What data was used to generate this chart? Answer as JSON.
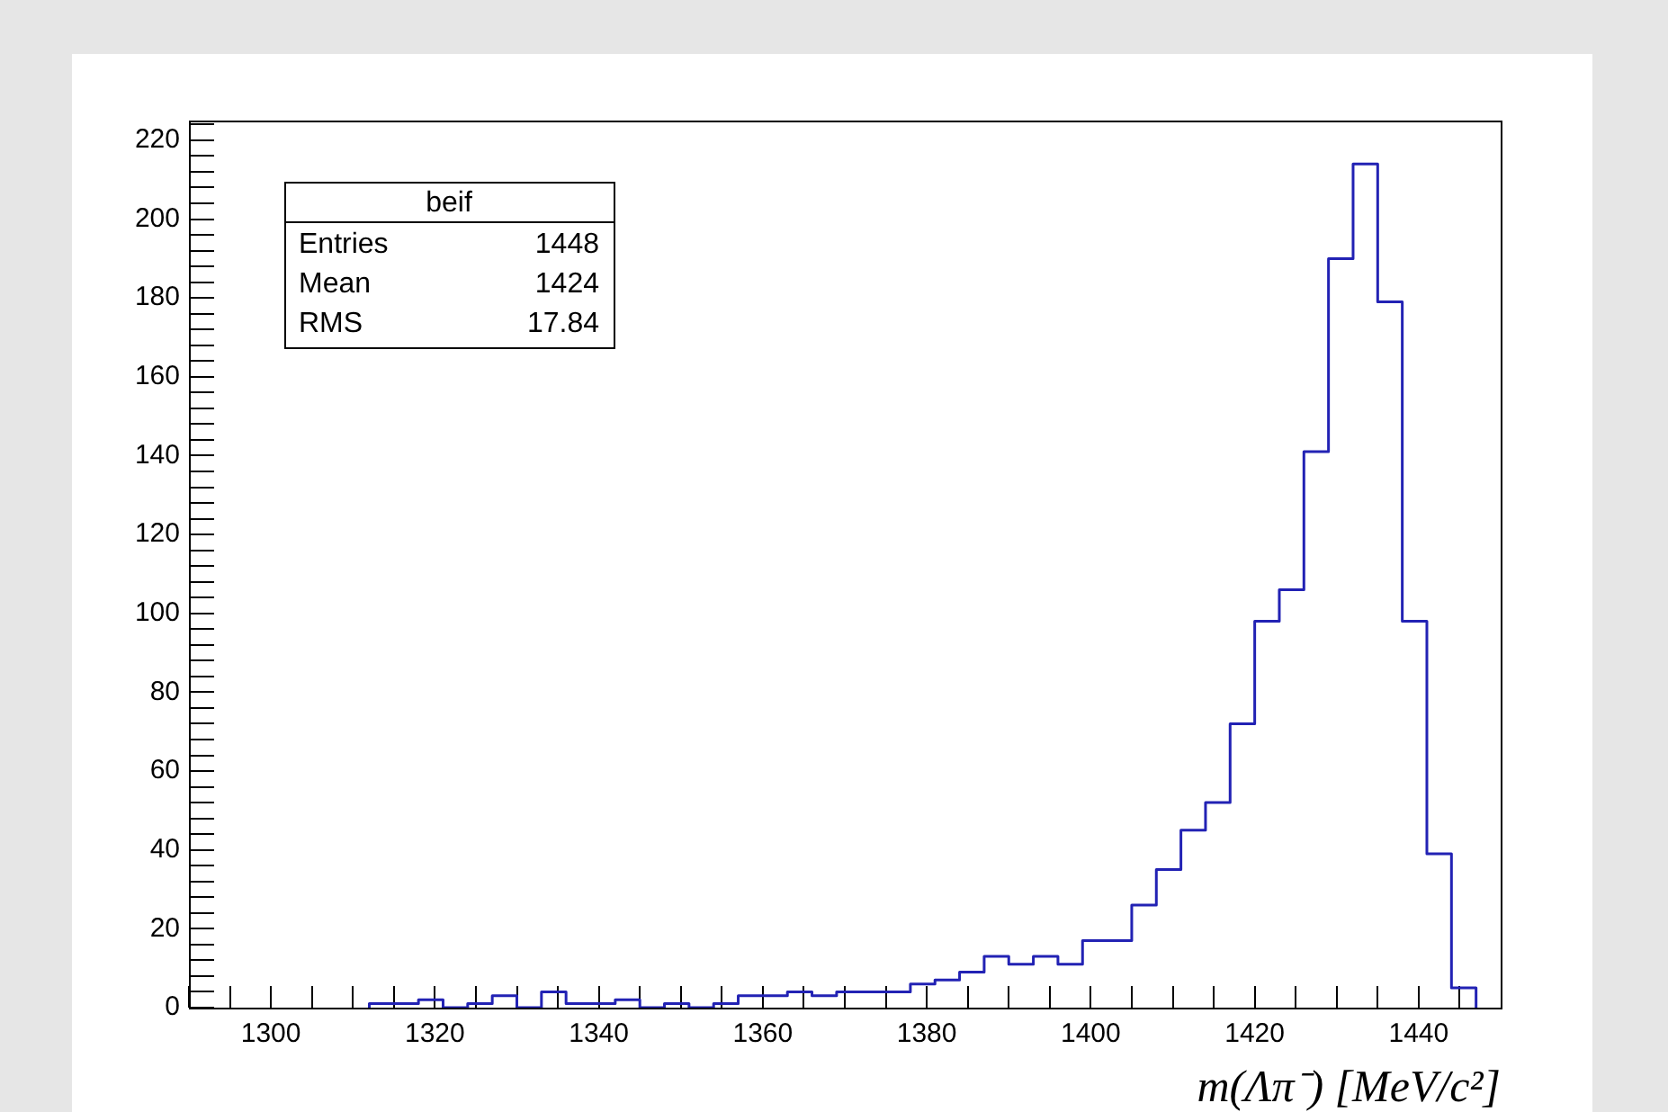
{
  "chart_data": {
    "type": "histogram",
    "xlabel": "m(Λπ⁻) [MeV/c²]",
    "annotations": [
      "beif",
      "Entries",
      "1448",
      "Mean",
      "1424",
      "RMS",
      "17.84"
    ],
    "bins": [
      1312,
      1315,
      1318,
      1321,
      1324,
      1327,
      1330,
      1333,
      1336,
      1339,
      1342,
      1345,
      1348,
      1351,
      1354,
      1357,
      1360,
      1363,
      1366,
      1369,
      1372,
      1375,
      1378,
      1381,
      1384,
      1387,
      1390,
      1393,
      1396,
      1399,
      1402,
      1405,
      1408,
      1411,
      1414,
      1417,
      1420,
      1423,
      1426,
      1429,
      1432,
      1435,
      1438,
      1441,
      1444,
      1447
    ],
    "values": [
      1,
      1,
      2,
      0,
      1,
      3,
      0,
      4,
      1,
      1,
      2,
      0,
      1,
      0,
      1,
      3,
      3,
      4,
      3,
      4,
      4,
      4,
      6,
      7,
      9,
      13,
      11,
      13,
      11,
      17,
      17,
      26,
      35,
      45,
      52,
      72,
      98,
      106,
      141,
      190,
      214,
      179,
      98,
      39,
      5
    ],
    "color": "#2222b4",
    "xlim": [
      1290,
      1450
    ],
    "xticks": [
      {
        "value": 1290,
        "label": null
      },
      {
        "value": 1295,
        "label": null
      },
      1300,
      {
        "value": 1305,
        "label": null
      },
      {
        "value": 1310,
        "label": null
      },
      {
        "value": 1315,
        "label": null
      },
      1320,
      {
        "value": 1325,
        "label": null
      },
      {
        "value": 1330,
        "label": null
      },
      {
        "value": 1335,
        "label": null
      },
      1340,
      {
        "value": 1345,
        "label": null
      },
      {
        "value": 1350,
        "label": null
      },
      {
        "value": 1355,
        "label": null
      },
      1360,
      {
        "value": 1365,
        "label": null
      },
      {
        "value": 1370,
        "label": null
      },
      {
        "value": 1375,
        "label": null
      },
      1380,
      {
        "value": 1385,
        "label": null
      },
      {
        "value": 1390,
        "label": null
      },
      {
        "value": 1395,
        "label": null
      },
      1400,
      {
        "value": 1405,
        "label": null
      },
      {
        "value": 1410,
        "label": null
      },
      {
        "value": 1415,
        "label": null
      },
      1420,
      {
        "value": 1425,
        "label": null
      },
      {
        "value": 1430,
        "label": null
      },
      {
        "value": 1435,
        "label": null
      },
      1440,
      {
        "value": 1445,
        "label": null
      }
    ],
    "ylim": [
      0,
      225
    ],
    "yticks": [
      0,
      {
        "value": 4,
        "label": null
      },
      {
        "value": 8,
        "label": null
      },
      {
        "value": 12,
        "label": null
      },
      {
        "value": 16,
        "label": null
      },
      20,
      {
        "value": 24,
        "label": null
      },
      {
        "value": 28,
        "label": null
      },
      {
        "value": 32,
        "label": null
      },
      {
        "value": 36,
        "label": null
      },
      40,
      {
        "value": 44,
        "label": null
      },
      {
        "value": 48,
        "label": null
      },
      {
        "value": 52,
        "label": null
      },
      {
        "value": 56,
        "label": null
      },
      60,
      {
        "value": 64,
        "label": null
      },
      {
        "value": 68,
        "label": null
      },
      {
        "value": 72,
        "label": null
      },
      {
        "value": 76,
        "label": null
      },
      80,
      {
        "value": 84,
        "label": null
      },
      {
        "value": 88,
        "label": null
      },
      {
        "value": 92,
        "label": null
      },
      {
        "value": 96,
        "label": null
      },
      100,
      {
        "value": 104,
        "label": null
      },
      {
        "value": 108,
        "label": null
      },
      {
        "value": 112,
        "label": null
      },
      {
        "value": 116,
        "label": null
      },
      120,
      {
        "value": 124,
        "label": null
      },
      {
        "value": 128,
        "label": null
      },
      {
        "value": 132,
        "label": null
      },
      {
        "value": 136,
        "label": null
      },
      140,
      {
        "value": 144,
        "label": null
      },
      {
        "value": 148,
        "label": null
      },
      {
        "value": 152,
        "label": null
      },
      {
        "value": 156,
        "label": null
      },
      160,
      {
        "value": 164,
        "label": null
      },
      {
        "value": 168,
        "label": null
      },
      {
        "value": 172,
        "label": null
      },
      {
        "value": 176,
        "label": null
      },
      180,
      {
        "value": 184,
        "label": null
      },
      {
        "value": 188,
        "label": null
      },
      {
        "value": 192,
        "label": null
      },
      {
        "value": 196,
        "label": null
      },
      200,
      {
        "value": 204,
        "label": null
      },
      {
        "value": 208,
        "label": null
      },
      {
        "value": 212,
        "label": null
      },
      {
        "value": 216,
        "label": null
      },
      220,
      {
        "value": 224,
        "label": null
      }
    ]
  }
}
